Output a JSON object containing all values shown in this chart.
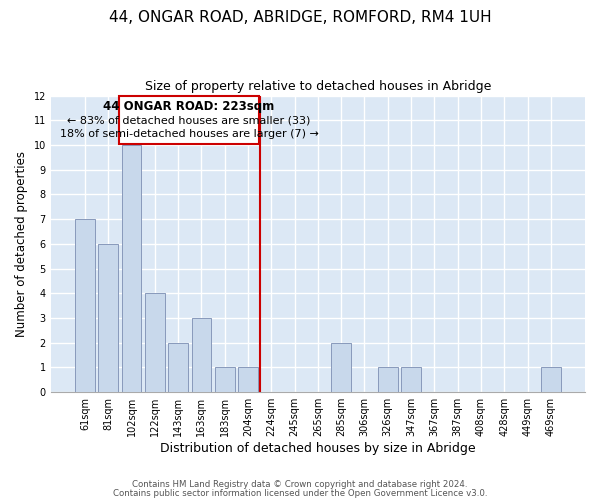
{
  "title": "44, ONGAR ROAD, ABRIDGE, ROMFORD, RM4 1UH",
  "subtitle": "Size of property relative to detached houses in Abridge",
  "xlabel": "Distribution of detached houses by size in Abridge",
  "ylabel": "Number of detached properties",
  "bar_labels": [
    "61sqm",
    "81sqm",
    "102sqm",
    "122sqm",
    "143sqm",
    "163sqm",
    "183sqm",
    "204sqm",
    "224sqm",
    "245sqm",
    "265sqm",
    "285sqm",
    "306sqm",
    "326sqm",
    "347sqm",
    "367sqm",
    "387sqm",
    "408sqm",
    "428sqm",
    "449sqm",
    "469sqm"
  ],
  "bar_values": [
    7,
    6,
    10,
    4,
    2,
    3,
    1,
    1,
    0,
    0,
    0,
    2,
    0,
    1,
    1,
    0,
    0,
    0,
    0,
    0,
    1
  ],
  "bar_color": "#c8d8eb",
  "bar_edge_color": "#8899bb",
  "property_line_color": "#cc0000",
  "annotation_box_color": "#ffffff",
  "annotation_border_color": "#cc0000",
  "annotation_line1": "44 ONGAR ROAD: 223sqm",
  "annotation_line2": "← 83% of detached houses are smaller (33)",
  "annotation_line3": "18% of semi-detached houses are larger (7) →",
  "ylim": [
    0,
    12
  ],
  "yticks": [
    0,
    1,
    2,
    3,
    4,
    5,
    6,
    7,
    8,
    9,
    10,
    11,
    12
  ],
  "footer1": "Contains HM Land Registry data © Crown copyright and database right 2024.",
  "footer2": "Contains public sector information licensed under the Open Government Licence v3.0.",
  "bg_color": "#ffffff",
  "plot_bg_color": "#dce8f5",
  "grid_color": "#ffffff",
  "title_fontsize": 11,
  "subtitle_fontsize": 9,
  "tick_fontsize": 7,
  "ylabel_fontsize": 8.5,
  "xlabel_fontsize": 9
}
